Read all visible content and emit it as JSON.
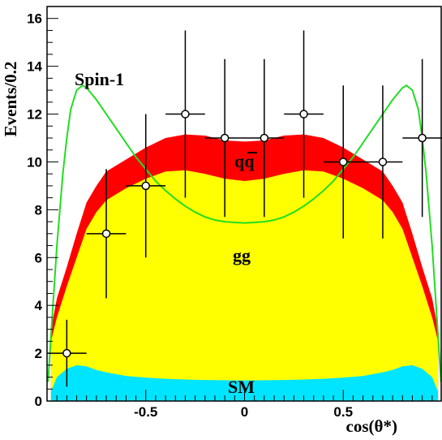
{
  "chart_data": {
    "type": "area",
    "xlabel": "cos(θ*)",
    "ylabel": "Events/0.2",
    "xlim": [
      -1.0,
      1.0
    ],
    "ylim": [
      0,
      16.5
    ],
    "x_ticks": [
      "-0.5",
      "0",
      "0.5"
    ],
    "x_tick_values": [
      -0.5,
      0,
      0.5
    ],
    "y_ticks": [
      "0",
      "2",
      "4",
      "6",
      "8",
      "10",
      "12",
      "14",
      "16"
    ],
    "y_tick_values": [
      0,
      2,
      4,
      6,
      8,
      10,
      12,
      14,
      16
    ],
    "annotations": {
      "spin": "Spin-1",
      "qq": "qq",
      "gg": "gg",
      "sm": "SM"
    },
    "series": [
      {
        "name": "SM",
        "color": "#00e5ff",
        "x": [
          -0.98,
          -0.95,
          -0.9,
          -0.85,
          -0.8,
          -0.75,
          -0.7,
          -0.6,
          -0.5,
          -0.4,
          -0.3,
          -0.2,
          -0.1,
          0,
          0.1,
          0.2,
          0.3,
          0.4,
          0.5,
          0.6,
          0.7,
          0.75,
          0.8,
          0.85,
          0.9,
          0.95,
          0.98
        ],
        "y": [
          0.4,
          1.0,
          1.35,
          1.5,
          1.45,
          1.3,
          1.2,
          1.05,
          0.98,
          0.93,
          0.9,
          0.88,
          0.87,
          0.86,
          0.87,
          0.88,
          0.9,
          0.93,
          0.98,
          1.05,
          1.2,
          1.3,
          1.45,
          1.5,
          1.35,
          1.0,
          0.4
        ]
      },
      {
        "name": "gg",
        "color": "#ffff00",
        "x": [
          -0.98,
          -0.95,
          -0.9,
          -0.85,
          -0.8,
          -0.75,
          -0.7,
          -0.6,
          -0.5,
          -0.4,
          -0.3,
          -0.2,
          -0.1,
          0,
          0.1,
          0.2,
          0.3,
          0.4,
          0.5,
          0.6,
          0.7,
          0.75,
          0.8,
          0.85,
          0.9,
          0.95,
          0.98
        ],
        "y": [
          2.5,
          3.5,
          4.8,
          6.0,
          7.2,
          7.9,
          8.4,
          8.9,
          9.3,
          9.6,
          9.65,
          9.5,
          9.3,
          9.2,
          9.3,
          9.5,
          9.65,
          9.6,
          9.3,
          8.9,
          8.4,
          7.9,
          7.2,
          6.0,
          4.8,
          3.5,
          2.5
        ]
      },
      {
        "name": "qq",
        "color": "#ff0000",
        "x": [
          -0.98,
          -0.95,
          -0.9,
          -0.85,
          -0.8,
          -0.75,
          -0.7,
          -0.6,
          -0.5,
          -0.4,
          -0.3,
          -0.2,
          -0.1,
          0,
          0.1,
          0.2,
          0.3,
          0.4,
          0.5,
          0.6,
          0.7,
          0.75,
          0.8,
          0.85,
          0.9,
          0.95,
          0.98
        ],
        "y": [
          3.0,
          4.3,
          5.6,
          7.0,
          8.3,
          9.0,
          9.6,
          10.1,
          10.6,
          11.0,
          11.15,
          11.1,
          10.9,
          10.85,
          10.9,
          11.1,
          11.15,
          11.0,
          10.6,
          10.1,
          9.6,
          9.0,
          8.3,
          7.0,
          5.6,
          4.3,
          3.0
        ]
      },
      {
        "name": "Spin-1",
        "color": "#22dd22",
        "x": [
          -0.995,
          -0.97,
          -0.95,
          -0.92,
          -0.9,
          -0.88,
          -0.85,
          -0.82,
          -0.8,
          -0.78,
          -0.75,
          -0.7,
          -0.65,
          -0.6,
          -0.55,
          -0.5,
          -0.45,
          -0.4,
          -0.35,
          -0.3,
          -0.25,
          -0.2,
          -0.15,
          -0.1,
          -0.05,
          0,
          0.05,
          0.1,
          0.15,
          0.2,
          0.25,
          0.3,
          0.35,
          0.4,
          0.45,
          0.5,
          0.55,
          0.6,
          0.65,
          0.7,
          0.75,
          0.78,
          0.8,
          0.82,
          0.85,
          0.88,
          0.9,
          0.92,
          0.95,
          0.97,
          0.995
        ],
        "y": [
          0.8,
          4.0,
          6.5,
          9.5,
          11.0,
          12.2,
          13.0,
          13.2,
          13.1,
          12.9,
          12.6,
          12.0,
          11.4,
          10.8,
          10.2,
          9.7,
          9.2,
          8.8,
          8.45,
          8.15,
          7.9,
          7.7,
          7.57,
          7.5,
          7.47,
          7.45,
          7.47,
          7.5,
          7.57,
          7.7,
          7.9,
          8.15,
          8.45,
          8.8,
          9.2,
          9.7,
          10.2,
          10.8,
          11.4,
          12.0,
          12.6,
          12.9,
          13.1,
          13.2,
          13.0,
          12.2,
          11.0,
          9.5,
          6.5,
          4.0,
          0.8
        ]
      },
      {
        "name": "data",
        "color": "#000000",
        "x": [
          -0.9,
          -0.7,
          -0.5,
          -0.3,
          -0.1,
          0.1,
          0.3,
          0.5,
          0.7,
          0.9
        ],
        "y": [
          2,
          7,
          9,
          12,
          11,
          11,
          12,
          10,
          10,
          11
        ],
        "y_err": [
          1.4,
          2.7,
          3.0,
          3.5,
          3.3,
          3.3,
          3.5,
          3.2,
          3.2,
          3.3
        ],
        "x_err": 0.1
      }
    ]
  }
}
